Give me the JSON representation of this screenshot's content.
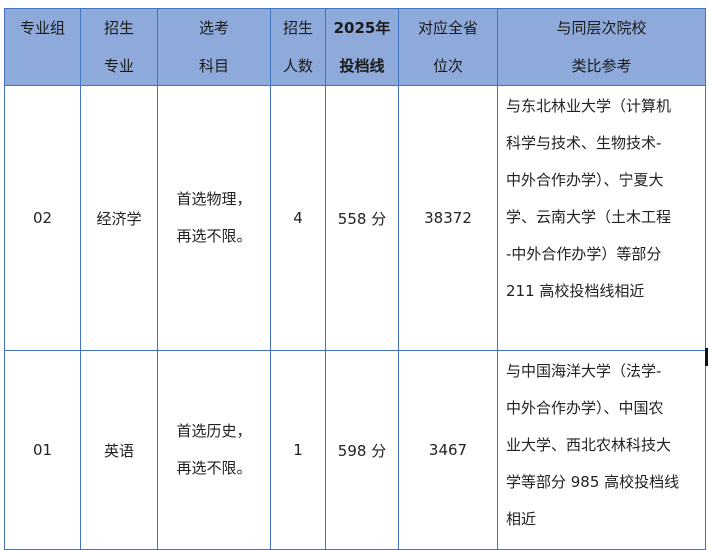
{
  "header": {
    "col1": [
      "专业组"
    ],
    "col2": [
      "招生",
      "专业"
    ],
    "col3": [
      "选考",
      "科目"
    ],
    "col4": [
      "招生",
      "人数"
    ],
    "col5": [
      "2025年",
      "投档线"
    ],
    "col6": [
      "对应全省",
      "位次"
    ],
    "col7": [
      "与同层次院校",
      "类比参考"
    ]
  },
  "rows": [
    {
      "group": "02",
      "major": "经济学",
      "subjects": [
        "首选物理，",
        "再选不限。"
      ],
      "count": "4",
      "score": "558 分",
      "rank": "38372",
      "reference": [
        "与东北林业大学（计算机",
        "科学与技术、生物技术-",
        "中外合作办学）、宁夏大",
        "学、云南大学（土木工程",
        "-中外合作办学）等部分",
        "211 高校投档线相近"
      ]
    },
    {
      "group": "01",
      "major": "英语",
      "subjects": [
        "首选历史，",
        "再选不限。"
      ],
      "count": "1",
      "score": "598 分",
      "rank": "3467",
      "reference": [
        "与中国海洋大学（法学-",
        "中外合作办学）、中国农",
        "业大学、西北农林科技大",
        "学等部分 985 高校投档线",
        "相近"
      ]
    }
  ],
  "colors": {
    "header_bg": "#8eaadb",
    "border": "#4472c4"
  }
}
